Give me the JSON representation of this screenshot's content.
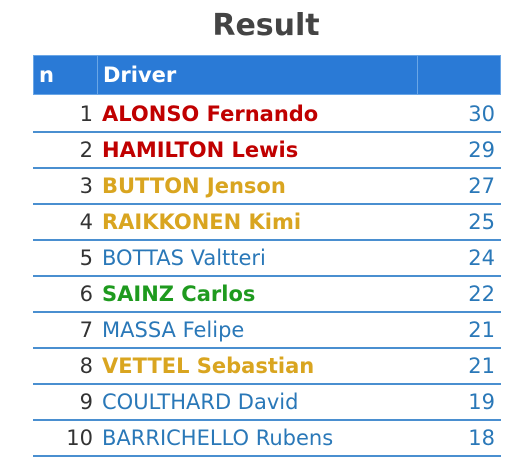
{
  "title": "Result",
  "table": {
    "header": [
      "n",
      "Driver"
    ],
    "rows": [
      {
        "n": 1,
        "driver": "ALONSO Fernando",
        "points": 30,
        "color": "#c00000",
        "bold": true
      },
      {
        "n": 2,
        "driver": "HAMILTON Lewis",
        "points": 29,
        "color": "#c00000",
        "bold": true
      },
      {
        "n": 3,
        "driver": "BUTTON Jenson",
        "points": 27,
        "color": "#d9a520",
        "bold": true
      },
      {
        "n": 4,
        "driver": "RAIKKONEN Kimi",
        "points": 25,
        "color": "#d9a520",
        "bold": true
      },
      {
        "n": 5,
        "driver": "BOTTAS Valtteri",
        "points": 24,
        "color": "#2a78b8",
        "bold": false
      },
      {
        "n": 6,
        "driver": "SAINZ Carlos",
        "points": 22,
        "color": "#1e9a1e",
        "bold": true
      },
      {
        "n": 7,
        "driver": "MASSA Felipe",
        "points": 21,
        "color": "#2a78b8",
        "bold": false
      },
      {
        "n": 8,
        "driver": "VETTEL Sebastian",
        "points": 21,
        "color": "#d9a520",
        "bold": true
      },
      {
        "n": 9,
        "driver": "COULTHARD David",
        "points": 19,
        "color": "#2a78b8",
        "bold": false
      },
      {
        "n": 10,
        "driver": "BARRICHELLO Rubens",
        "points": 18,
        "color": "#2a78b8",
        "bold": false
      }
    ]
  }
}
